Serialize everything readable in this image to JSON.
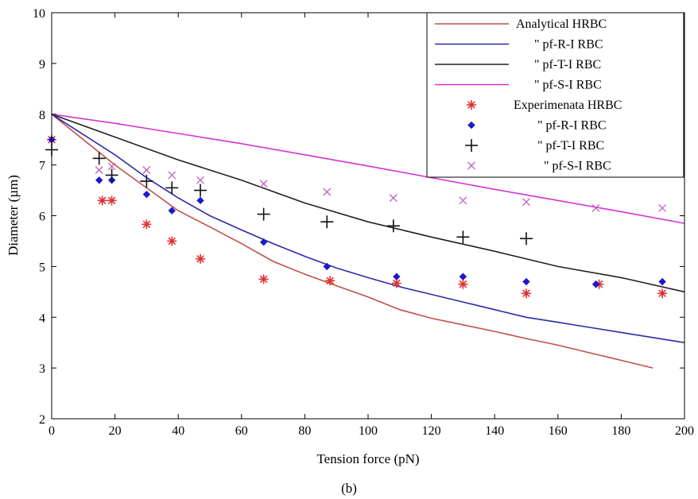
{
  "caption": "(b)",
  "chart_data": {
    "type": "line",
    "xlabel": "Tension force (pN)",
    "ylabel": "Diameter (µm)",
    "xlim": [
      0,
      200
    ],
    "ylim": [
      2,
      10
    ],
    "xticks": [
      "0",
      "20",
      "40",
      "60",
      "80",
      "100",
      "120",
      "140",
      "160",
      "180",
      "200"
    ],
    "yticks": [
      "2",
      "3",
      "4",
      "5",
      "6",
      "7",
      "8",
      "9",
      "10"
    ],
    "legend_position": "top-right",
    "lines": [
      {
        "name": "Analytical HRBC",
        "color": "#c0504d",
        "x": [
          0,
          10,
          20,
          30,
          40,
          50,
          60,
          70,
          80,
          90,
          100,
          110,
          120,
          130,
          140,
          150,
          160,
          170,
          180,
          190
        ],
        "y": [
          8.0,
          7.5,
          7.0,
          6.55,
          6.1,
          5.78,
          5.45,
          5.1,
          4.85,
          4.62,
          4.4,
          4.15,
          3.98,
          3.85,
          3.72,
          3.58,
          3.45,
          3.3,
          3.15,
          3.0
        ]
      },
      {
        "name": "\" pf-R-I RBC",
        "color": "#2b2ba8",
        "x": [
          0,
          10,
          20,
          30,
          40,
          50,
          60,
          70,
          80,
          90,
          100,
          110,
          120,
          130,
          140,
          150,
          160,
          170,
          180,
          190,
          200
        ],
        "y": [
          8.0,
          7.6,
          7.2,
          6.75,
          6.35,
          6.0,
          5.72,
          5.45,
          5.2,
          4.97,
          4.78,
          4.6,
          4.45,
          4.3,
          4.15,
          4.0,
          3.9,
          3.8,
          3.7,
          3.6,
          3.5
        ]
      },
      {
        "name": "\" pf-T-I RBC",
        "color": "#222222",
        "x": [
          0,
          20,
          40,
          60,
          80,
          100,
          120,
          140,
          160,
          180,
          200
        ],
        "y": [
          8.0,
          7.55,
          7.1,
          6.7,
          6.25,
          5.88,
          5.58,
          5.3,
          5.0,
          4.78,
          4.5
        ]
      },
      {
        "name": "\" pf-S-I RBC",
        "color": "#d633d6",
        "x": [
          0,
          20,
          40,
          60,
          80,
          100,
          120,
          140,
          160,
          180,
          200
        ],
        "y": [
          8.0,
          7.82,
          7.62,
          7.42,
          7.2,
          6.98,
          6.75,
          6.52,
          6.3,
          6.08,
          5.85
        ]
      }
    ],
    "markers": [
      {
        "name": "Experimenata HRBC",
        "color": "#e03030",
        "symbol": "asterisk",
        "x": [
          0,
          16,
          19,
          30,
          38,
          47,
          67,
          88,
          109,
          130,
          150,
          173,
          193
        ],
        "y": [
          7.5,
          6.3,
          6.3,
          5.83,
          5.5,
          5.15,
          4.75,
          4.72,
          4.67,
          4.65,
          4.47,
          4.65,
          4.47
        ]
      },
      {
        "name": "\" pf-R-I RBC",
        "color": "#1a1acc",
        "symbol": "diamond",
        "x": [
          0,
          15,
          19,
          30,
          38,
          47,
          67,
          87,
          109,
          130,
          150,
          172,
          193
        ],
        "y": [
          7.5,
          6.7,
          6.7,
          6.42,
          6.1,
          6.3,
          5.48,
          5.0,
          4.8,
          4.8,
          4.7,
          4.65,
          4.7
        ]
      },
      {
        "name": "\" pf-T-I RBC",
        "color": "#111111",
        "symbol": "plus",
        "x": [
          0,
          15,
          19,
          30,
          38,
          47,
          67,
          87,
          108,
          130,
          150
        ],
        "y": [
          7.3,
          7.13,
          6.8,
          6.68,
          6.55,
          6.5,
          6.03,
          5.88,
          5.8,
          5.58,
          5.55
        ]
      },
      {
        "name": "\" pf-S-I RBC",
        "color": "#c060c0",
        "symbol": "cross",
        "x": [
          15,
          19,
          30,
          38,
          47,
          67,
          87,
          108,
          130,
          150,
          172,
          193
        ],
        "y": [
          6.9,
          6.97,
          6.9,
          6.8,
          6.7,
          6.63,
          6.47,
          6.35,
          6.3,
          6.27,
          6.15,
          6.15
        ]
      }
    ]
  }
}
